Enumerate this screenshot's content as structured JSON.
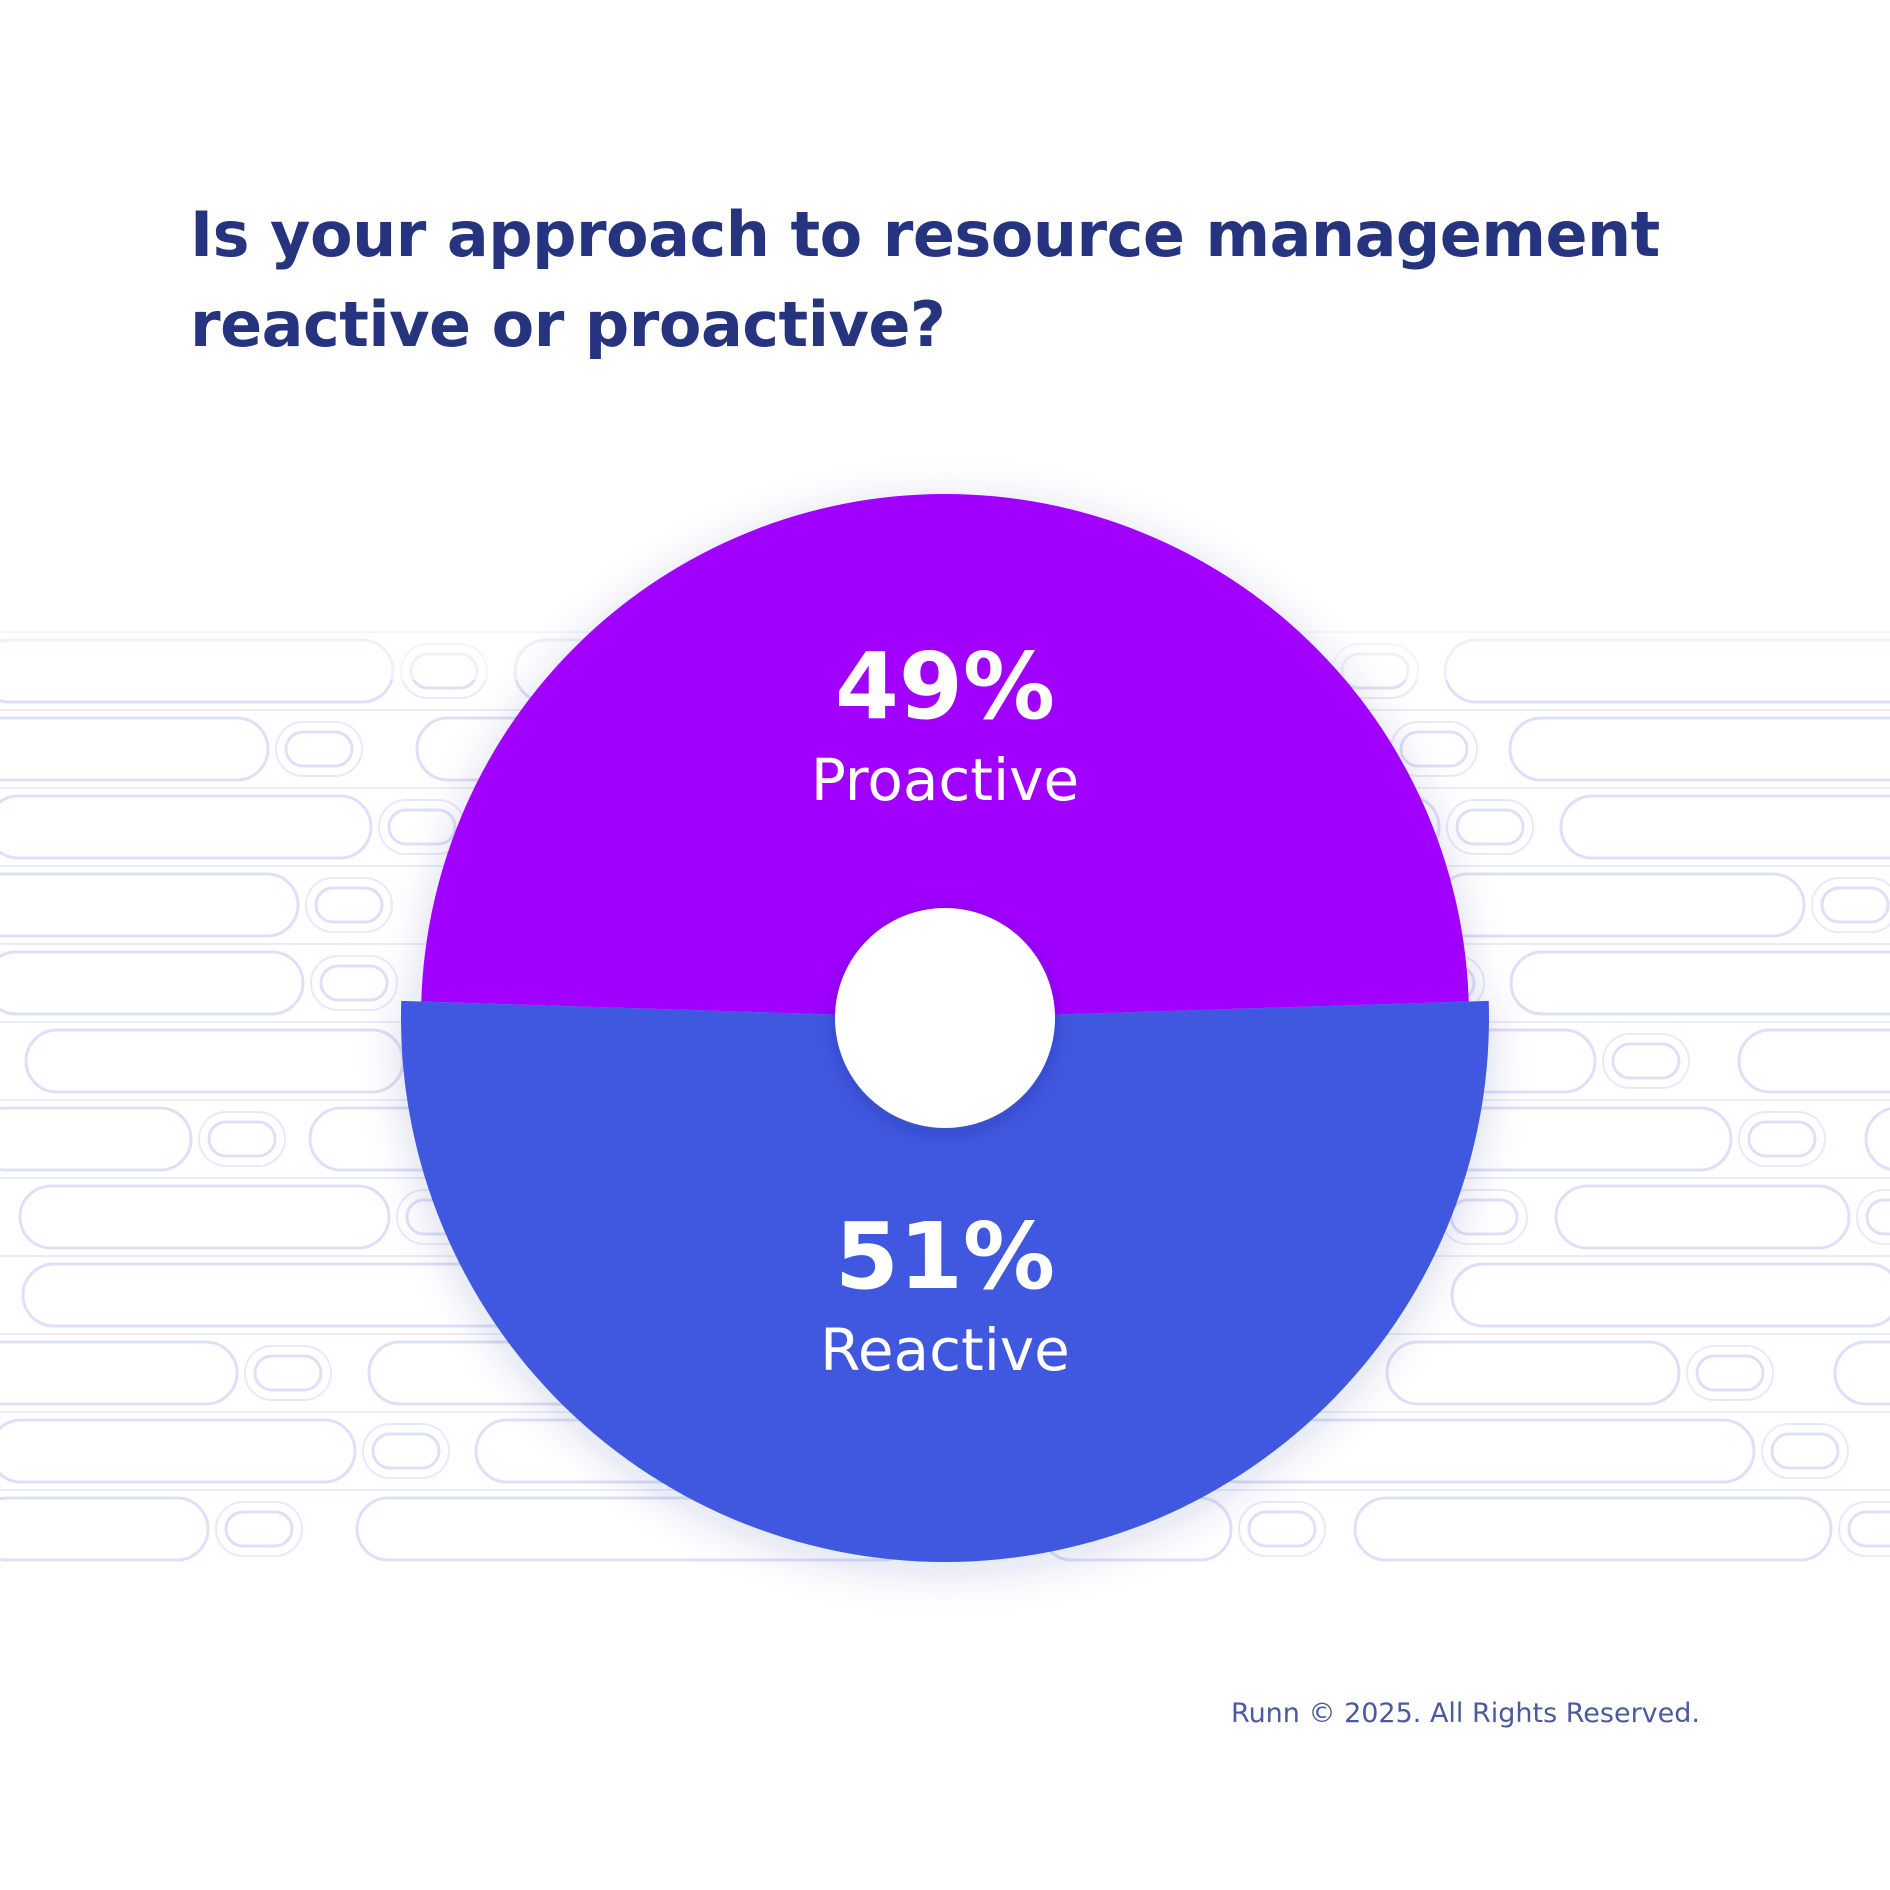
{
  "title": {
    "line1": "Is your approach to resource management",
    "line2": "reactive or proactive?"
  },
  "footer": "Runn © 2025. All Rights Reserved.",
  "colors": {
    "title": "#263480",
    "proactive": "#A100FF",
    "reactive": "#4158E0",
    "background_pattern": "#DDE1F7",
    "label_text": "#FFFFFF",
    "footer": "#4A5A9E"
  },
  "chart_data": {
    "type": "pie",
    "title": "Is your approach to resource management reactive or proactive?",
    "categories": [
      "Proactive",
      "Reactive"
    ],
    "values": [
      49,
      51
    ],
    "labels": [
      "49%",
      "51%"
    ],
    "slices": [
      {
        "name": "Proactive",
        "value": 49,
        "label": "49%",
        "color": "#A100FF"
      },
      {
        "name": "Reactive",
        "value": 51,
        "label": "51%",
        "color": "#4158E0"
      }
    ],
    "legend": "none",
    "center_hole": true
  }
}
